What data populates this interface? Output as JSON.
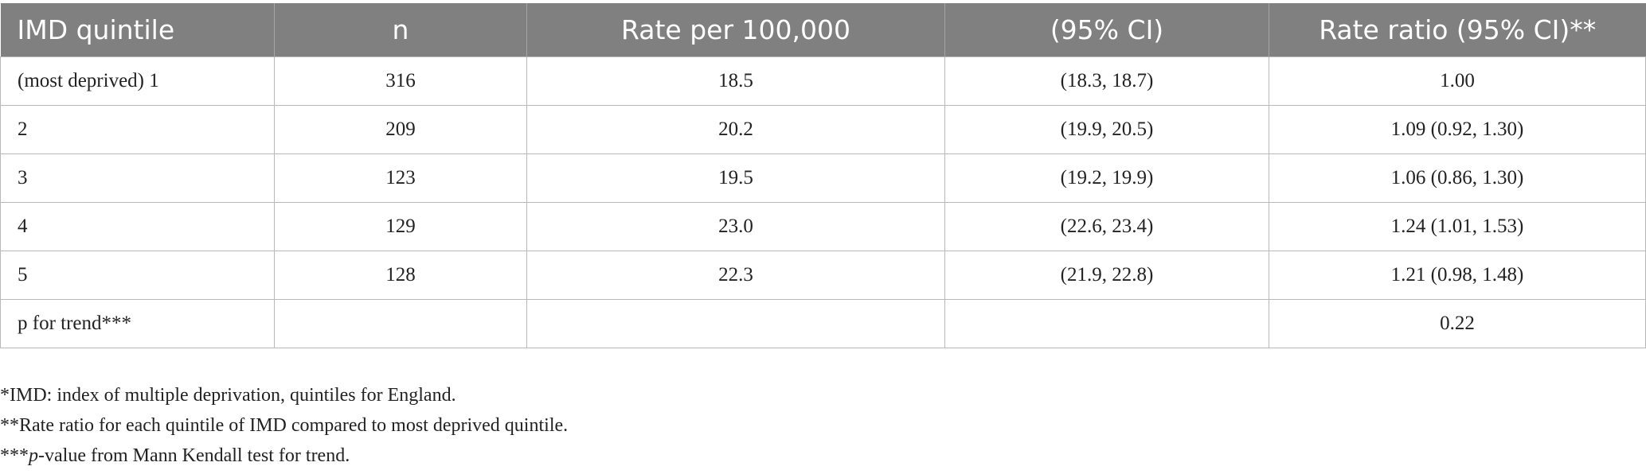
{
  "table": {
    "headers": [
      "IMD quintile",
      "n",
      "Rate per 100,000",
      "(95% CI)",
      "Rate ratio (95% CI)**"
    ],
    "rows": [
      [
        "(most deprived) 1",
        "316",
        "18.5",
        "(18.3, 18.7)",
        "1.00"
      ],
      [
        "2",
        "209",
        "20.2",
        "(19.9, 20.5)",
        "1.09 (0.92, 1.30)"
      ],
      [
        "3",
        "123",
        "19.5",
        "(19.2, 19.9)",
        "1.06 (0.86, 1.30)"
      ],
      [
        "4",
        "129",
        "23.0",
        "(22.6, 23.4)",
        "1.24 (1.01, 1.53)"
      ],
      [
        "5",
        "128",
        "22.3",
        "(21.9, 22.8)",
        "1.21 (0.98, 1.48)"
      ],
      [
        "p for trend***",
        "",
        "",
        "",
        "0.22"
      ]
    ]
  },
  "footnotes": {
    "note1": "*IMD: index of multiple deprivation, quintiles for England.",
    "note2": "**Rate ratio for each quintile of IMD compared to most deprived quintile.",
    "note3_prefix": "***",
    "note3_italic": "p",
    "note3_rest": "-value from Mann Kendall test for trend."
  },
  "colors": {
    "header_background": "#808080",
    "header_text": "#ffffff",
    "grid_line": "#b8b8b8"
  }
}
